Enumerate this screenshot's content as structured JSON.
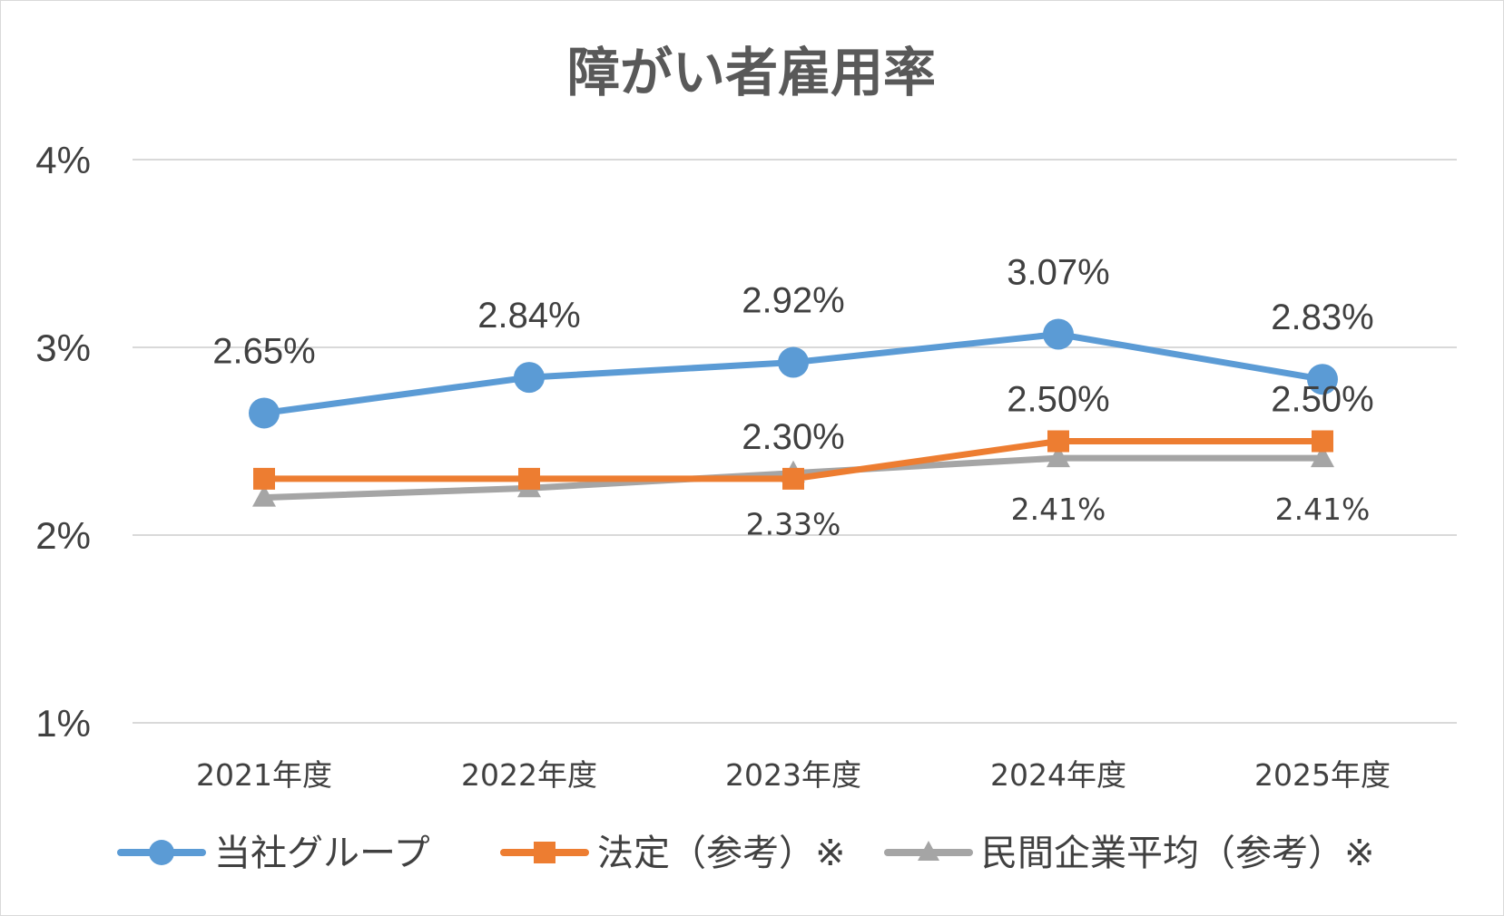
{
  "chart_data": {
    "type": "line",
    "title": "障がい者雇用率",
    "categories": [
      "2021年度",
      "2022年度",
      "2023年度",
      "2024年度",
      "2025年度"
    ],
    "ylim": [
      1,
      4
    ],
    "yticks": [
      "1%",
      "2%",
      "3%",
      "4%"
    ],
    "grid": true,
    "legend_position": "bottom",
    "series": [
      {
        "name": "当社グループ",
        "color": "#5b9bd5",
        "marker": "circle",
        "values": [
          2.65,
          2.84,
          2.92,
          3.07,
          2.83
        ],
        "labels": [
          "2.65%",
          "2.84%",
          "2.92%",
          "3.07%",
          "2.83%"
        ]
      },
      {
        "name": "法定（参考）※",
        "color": "#ed7d31",
        "marker": "square",
        "values": [
          2.3,
          2.3,
          2.3,
          2.5,
          2.5
        ],
        "labels": [
          "",
          "",
          "2.30%",
          "2.50%",
          "2.50%"
        ]
      },
      {
        "name": "民間企業平均（参考）※",
        "color": "#a5a5a5",
        "marker": "triangle",
        "values": [
          2.2,
          2.25,
          2.33,
          2.41,
          2.41
        ],
        "labels": [
          "",
          "",
          "2.33%",
          "2.41%",
          "2.41%"
        ]
      }
    ]
  }
}
